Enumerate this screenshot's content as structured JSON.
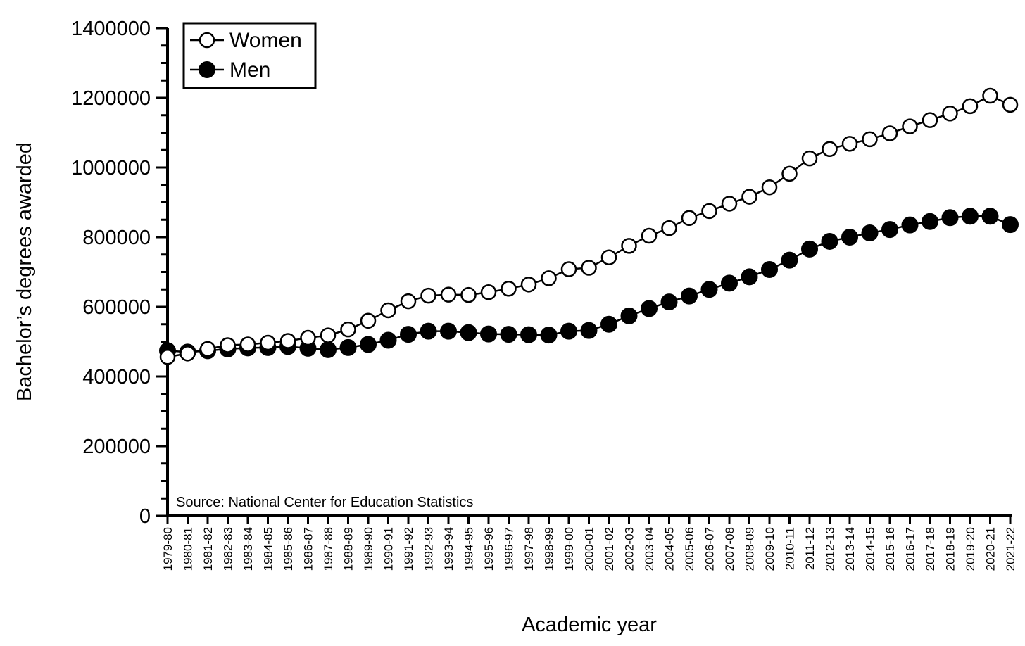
{
  "chart_data": {
    "type": "line",
    "xlabel": "Academic year",
    "ylabel": "Bachelor’s degrees awarded",
    "ylim": [
      0,
      1400000
    ],
    "yticks": [
      "0",
      "200000",
      "400000",
      "600000",
      "800000",
      "1000000",
      "1200000",
      "1400000"
    ],
    "legend_position": "top-left",
    "annotation": "Source: National Center for Education Statistics",
    "categories": [
      "1979-80",
      "1980-81",
      "1981-82",
      "1982-83",
      "1983-84",
      "1984-85",
      "1985-86",
      "1986-87",
      "1987-88",
      "1988-89",
      "1989-90",
      "1990-91",
      "1991-92",
      "1992-93",
      "1993-94",
      "1994-95",
      "1995-96",
      "1996-97",
      "1997-98",
      "1998-99",
      "1999-00",
      "2000-01",
      "2001-02",
      "2002-03",
      "2003-04",
      "2004-05",
      "2005-06",
      "2006-07",
      "2007-08",
      "2008-09",
      "2009-10",
      "2010-11",
      "2011-12",
      "2012-13",
      "2013-14",
      "2014-15",
      "2015-16",
      "2016-17",
      "2017-18",
      "2018-19",
      "2019-20",
      "2020-21",
      "2021-22"
    ],
    "series": [
      {
        "name": "Women",
        "marker": "open-circle",
        "values": [
          456000,
          466000,
          479000,
          490000,
          492000,
          497000,
          502000,
          511000,
          518000,
          535000,
          560000,
          590000,
          616000,
          632000,
          635000,
          634000,
          642000,
          652000,
          664000,
          682000,
          708000,
          712000,
          742000,
          775000,
          804000,
          826000,
          855000,
          875000,
          896000,
          916000,
          943000,
          982000,
          1026000,
          1053000,
          1068000,
          1081000,
          1098000,
          1118000,
          1136000,
          1155000,
          1176000,
          1206000,
          1180000
        ]
      },
      {
        "name": "Men",
        "marker": "filled-circle",
        "values": [
          474000,
          470000,
          474000,
          479000,
          482000,
          483000,
          486000,
          481000,
          477000,
          483000,
          492000,
          504000,
          521000,
          530000,
          530000,
          526000,
          522000,
          521000,
          520000,
          519000,
          530000,
          532000,
          550000,
          574000,
          595000,
          614000,
          631000,
          650000,
          668000,
          686000,
          707000,
          734000,
          766000,
          788000,
          800000,
          812000,
          822000,
          835000,
          845000,
          856000,
          860000,
          860000,
          836000
        ]
      }
    ]
  },
  "colors": {
    "line": "#000000",
    "open_marker_fill": "#ffffff",
    "filled_marker_fill": "#000000"
  }
}
